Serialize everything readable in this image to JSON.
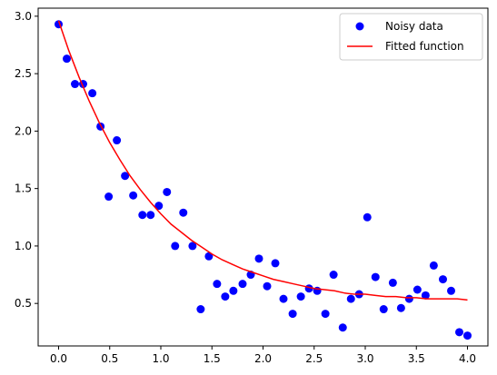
{
  "chart_data": {
    "type": "scatter",
    "xlim": [
      -0.2,
      4.2
    ],
    "ylim": [
      0.13,
      3.07
    ],
    "xticks": [
      "0.0",
      "0.5",
      "1.0",
      "1.5",
      "2.0",
      "2.5",
      "3.0",
      "3.5",
      "4.0"
    ],
    "xtick_values": [
      0,
      0.5,
      1.0,
      1.5,
      2.0,
      2.5,
      3.0,
      3.5,
      4.0
    ],
    "yticks": [
      "0.5",
      "1.0",
      "1.5",
      "2.0",
      "2.5",
      "3.0"
    ],
    "ytick_values": [
      0.5,
      1.0,
      1.5,
      2.0,
      2.5,
      3.0
    ],
    "grid": false,
    "legend_position": "top-right",
    "series": [
      {
        "name": "Noisy data",
        "type": "scatter",
        "color": "#0000ff",
        "x": [
          0.0,
          0.08,
          0.16,
          0.24,
          0.33,
          0.41,
          0.49,
          0.57,
          0.65,
          0.73,
          0.82,
          0.9,
          0.98,
          1.06,
          1.14,
          1.22,
          1.31,
          1.39,
          1.47,
          1.55,
          1.63,
          1.71,
          1.8,
          1.88,
          1.96,
          2.04,
          2.12,
          2.2,
          2.29,
          2.37,
          2.45,
          2.53,
          2.61,
          2.69,
          2.78,
          2.86,
          2.94,
          3.02,
          3.1,
          3.18,
          3.27,
          3.35,
          3.43,
          3.51,
          3.59,
          3.67,
          3.76,
          3.84,
          3.92,
          4.0
        ],
        "y": [
          2.93,
          2.63,
          2.41,
          2.41,
          2.33,
          2.04,
          1.43,
          1.92,
          1.61,
          1.44,
          1.27,
          1.27,
          1.35,
          1.47,
          1.0,
          1.29,
          1.0,
          0.45,
          0.91,
          0.67,
          0.56,
          0.61,
          0.67,
          0.75,
          0.89,
          0.65,
          0.85,
          0.54,
          0.41,
          0.56,
          0.63,
          0.61,
          0.41,
          0.75,
          0.29,
          0.54,
          0.58,
          1.25,
          0.73,
          0.45,
          0.68,
          0.46,
          0.54,
          0.62,
          0.57,
          0.83,
          0.71,
          0.61,
          0.25,
          0.22
        ]
      },
      {
        "name": "Fitted function",
        "type": "line",
        "color": "#ff0000",
        "x": [
          0.0,
          0.1,
          0.2,
          0.3,
          0.4,
          0.5,
          0.6,
          0.7,
          0.8,
          0.9,
          1.0,
          1.1,
          1.2,
          1.3,
          1.4,
          1.5,
          1.6,
          1.7,
          1.8,
          1.9,
          2.0,
          2.1,
          2.2,
          2.3,
          2.4,
          2.5,
          2.6,
          2.7,
          2.8,
          2.9,
          3.0,
          3.1,
          3.2,
          3.3,
          3.4,
          3.5,
          3.6,
          3.7,
          3.8,
          3.9,
          4.0
        ],
        "y": [
          2.96,
          2.7,
          2.47,
          2.26,
          2.07,
          1.9,
          1.75,
          1.61,
          1.49,
          1.38,
          1.28,
          1.19,
          1.12,
          1.05,
          0.99,
          0.93,
          0.88,
          0.84,
          0.8,
          0.77,
          0.74,
          0.71,
          0.69,
          0.67,
          0.65,
          0.63,
          0.62,
          0.61,
          0.59,
          0.58,
          0.58,
          0.57,
          0.56,
          0.56,
          0.55,
          0.55,
          0.54,
          0.54,
          0.54,
          0.54,
          0.53
        ]
      }
    ]
  }
}
